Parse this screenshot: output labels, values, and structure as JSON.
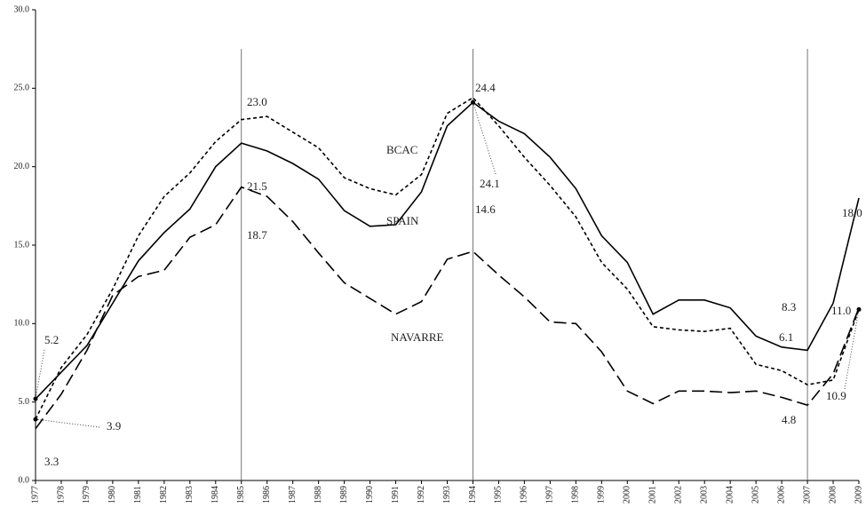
{
  "chart_data": {
    "type": "line",
    "x": [
      1977,
      1978,
      1979,
      1980,
      1981,
      1982,
      1983,
      1984,
      1985,
      1986,
      1987,
      1988,
      1989,
      1990,
      1991,
      1992,
      1993,
      1994,
      1995,
      1996,
      1997,
      1998,
      1999,
      2000,
      2001,
      2002,
      2003,
      2004,
      2005,
      2006,
      2007,
      2008,
      2009
    ],
    "xlim": [
      1977,
      2009
    ],
    "ylim": [
      0,
      30
    ],
    "yticks": [
      {
        "value": 0,
        "label": "0.0"
      },
      {
        "value": 5,
        "label": "5.0"
      },
      {
        "value": 10,
        "label": "10.0"
      },
      {
        "value": 15,
        "label": "15.0"
      },
      {
        "value": 20,
        "label": "20.0"
      },
      {
        "value": 25,
        "label": "25.0"
      },
      {
        "value": 30,
        "label": "30.0"
      }
    ],
    "reference_lines": [
      1985,
      1994,
      2007
    ],
    "series": [
      {
        "name": "BCAC",
        "color": "#000000",
        "dash": "short",
        "values": [
          3.9,
          7.2,
          9.3,
          12.2,
          15.6,
          18.1,
          19.6,
          21.6,
          23.0,
          23.2,
          22.2,
          21.2,
          19.3,
          18.6,
          18.2,
          19.5,
          23.4,
          24.4,
          22.6,
          20.6,
          18.8,
          16.8,
          13.9,
          12.2,
          9.8,
          9.6,
          9.5,
          9.7,
          7.4,
          7.0,
          6.1,
          6.4,
          10.9
        ],
        "value_labels": [
          "3.9",
          null,
          null,
          null,
          null,
          null,
          null,
          null,
          "23.0",
          null,
          null,
          null,
          null,
          null,
          null,
          null,
          null,
          "24.4",
          null,
          null,
          null,
          null,
          null,
          null,
          null,
          null,
          null,
          null,
          null,
          null,
          "6.1",
          null,
          "10.9"
        ]
      },
      {
        "name": "SPAIN",
        "color": "#000000",
        "dash": "solid",
        "values": [
          5.2,
          6.9,
          8.6,
          11.3,
          14.0,
          15.8,
          17.3,
          20.0,
          21.5,
          21.0,
          20.2,
          19.2,
          17.2,
          16.2,
          16.3,
          18.4,
          22.6,
          24.1,
          22.9,
          22.1,
          20.6,
          18.6,
          15.6,
          13.9,
          10.6,
          11.5,
          11.5,
          11.0,
          9.2,
          8.5,
          8.3,
          11.3,
          18.0
        ],
        "value_labels": [
          "5.2",
          null,
          null,
          null,
          null,
          null,
          null,
          null,
          "21.5",
          null,
          null,
          null,
          null,
          null,
          null,
          null,
          null,
          "24.1",
          null,
          null,
          null,
          null,
          null,
          null,
          null,
          null,
          null,
          null,
          null,
          null,
          "8.3",
          null,
          "18.0"
        ]
      },
      {
        "name": "NAVARRE",
        "color": "#000000",
        "dash": "long",
        "values": [
          3.3,
          5.5,
          8.3,
          11.8,
          13.0,
          13.4,
          15.5,
          16.3,
          18.7,
          18.1,
          16.5,
          14.5,
          12.6,
          11.6,
          10.6,
          11.4,
          14.1,
          14.6,
          13.1,
          11.7,
          10.1,
          10.0,
          8.2,
          5.7,
          4.9,
          5.7,
          5.7,
          5.6,
          5.7,
          5.3,
          4.8,
          6.8,
          11.0
        ],
        "value_labels": [
          "3.3",
          null,
          null,
          null,
          null,
          null,
          null,
          null,
          "18.7",
          null,
          null,
          null,
          null,
          null,
          null,
          null,
          null,
          "14.6",
          null,
          null,
          null,
          null,
          null,
          null,
          null,
          null,
          null,
          null,
          null,
          null,
          "4.8",
          null,
          "11.0"
        ]
      }
    ]
  }
}
